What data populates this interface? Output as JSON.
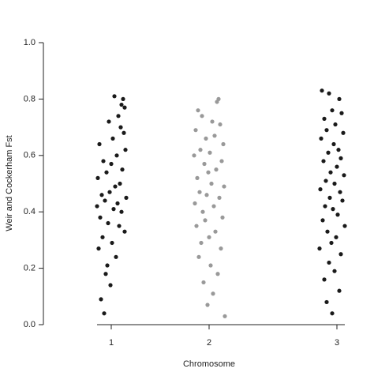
{
  "chart_data": {
    "type": "scatter",
    "x_label": "Chromosome",
    "y_label": "Weir and Cockerham Fst",
    "xlim": [
      0,
      385
    ],
    "xticks": [
      {
        "value": 86,
        "label": "1"
      },
      {
        "value": 210,
        "label": "2"
      },
      {
        "value": 372,
        "label": "3"
      }
    ],
    "ylim": [
      0,
      1
    ],
    "yticks": [
      {
        "value": 0,
        "label": "0.0"
      },
      0.2,
      0.4,
      0.6,
      0.8,
      {
        "value": 1,
        "label": "1.0"
      }
    ],
    "grid": false,
    "series": [
      {
        "color": "#1a1a1a",
        "x": [
          90,
          101,
          99,
          103,
          95,
          83,
          98,
          102,
          88,
          71,
          104,
          93,
          76,
          86,
          100,
          80,
          69,
          97,
          91,
          84,
          74,
          105,
          78,
          94,
          68,
          89,
          99,
          72,
          82,
          96,
          103,
          75,
          87,
          70,
          92,
          81,
          79,
          85,
          73,
          77
        ],
        "values": [
          0.81,
          0.8,
          0.78,
          0.77,
          0.74,
          0.72,
          0.7,
          0.68,
          0.66,
          0.64,
          0.62,
          0.6,
          0.58,
          0.57,
          0.55,
          0.54,
          0.52,
          0.5,
          0.49,
          0.47,
          0.46,
          0.45,
          0.44,
          0.43,
          0.42,
          0.41,
          0.4,
          0.38,
          0.36,
          0.35,
          0.33,
          0.31,
          0.29,
          0.27,
          0.24,
          0.21,
          0.18,
          0.14,
          0.09,
          0.04
        ]
      },
      {
        "color": "#999999",
        "x": [
          222,
          220,
          196,
          201,
          214,
          224,
          193,
          217,
          206,
          228,
          199,
          211,
          191,
          226,
          204,
          219,
          209,
          195,
          213,
          229,
          198,
          207,
          223,
          192,
          216,
          202,
          227,
          205,
          194,
          218,
          210,
          200,
          225,
          197,
          212,
          221,
          203,
          215,
          208,
          230
        ],
        "values": [
          0.8,
          0.79,
          0.76,
          0.74,
          0.72,
          0.71,
          0.69,
          0.67,
          0.66,
          0.64,
          0.62,
          0.61,
          0.6,
          0.58,
          0.57,
          0.55,
          0.54,
          0.52,
          0.5,
          0.49,
          0.47,
          0.46,
          0.45,
          0.43,
          0.42,
          0.4,
          0.38,
          0.37,
          0.35,
          0.33,
          0.31,
          0.29,
          0.27,
          0.24,
          0.21,
          0.18,
          0.15,
          0.11,
          0.07,
          0.03
        ]
      },
      {
        "color": "#1a1a1a",
        "x": [
          353,
          362,
          375,
          366,
          378,
          356,
          370,
          359,
          380,
          352,
          368,
          374,
          361,
          377,
          355,
          372,
          364,
          381,
          358,
          369,
          351,
          376,
          363,
          379,
          357,
          367,
          373,
          354,
          382,
          360,
          371,
          365,
          350,
          377,
          362,
          369,
          356,
          375,
          359,
          366
        ],
        "values": [
          0.83,
          0.82,
          0.8,
          0.76,
          0.75,
          0.73,
          0.71,
          0.69,
          0.68,
          0.66,
          0.64,
          0.62,
          0.61,
          0.59,
          0.58,
          0.56,
          0.54,
          0.53,
          0.51,
          0.5,
          0.48,
          0.47,
          0.45,
          0.44,
          0.42,
          0.41,
          0.39,
          0.37,
          0.35,
          0.33,
          0.31,
          0.29,
          0.27,
          0.25,
          0.22,
          0.19,
          0.16,
          0.12,
          0.08,
          0.04
        ]
      }
    ]
  }
}
